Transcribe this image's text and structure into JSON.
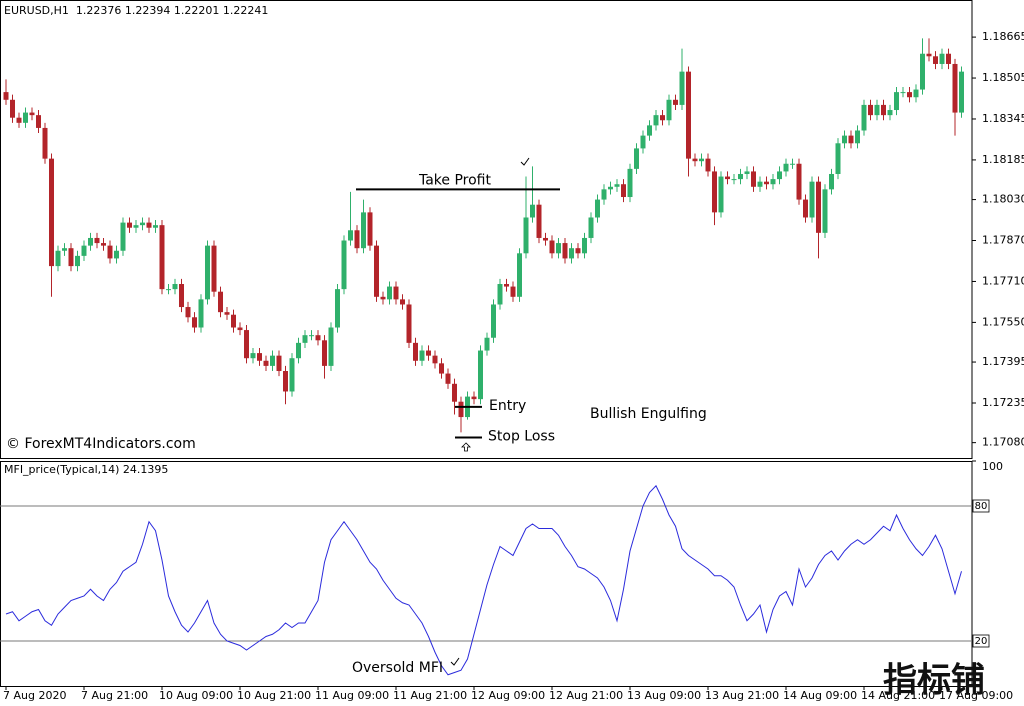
{
  "watermark": "指标铺",
  "chart_data": [
    {
      "type": "candlestick",
      "title": "EURUSD,H1  1.22376 1.22394 1.22201 1.22241",
      "categories": [
        "7 Aug 2020",
        null,
        null,
        null,
        null,
        null,
        null,
        null,
        null,
        null,
        null,
        null,
        "7 Aug 21:00",
        null,
        null,
        null,
        null,
        null,
        null,
        null,
        null,
        null,
        null,
        null,
        "10 Aug 09:00",
        null,
        null,
        null,
        null,
        null,
        null,
        null,
        null,
        null,
        null,
        null,
        "10 Aug 21:00",
        null,
        null,
        null,
        null,
        null,
        null,
        null,
        null,
        null,
        null,
        null,
        "11 Aug 09:00",
        null,
        null,
        null,
        null,
        null,
        null,
        null,
        null,
        null,
        null,
        null,
        "11 Aug 21:00",
        null,
        null,
        null,
        null,
        null,
        null,
        null,
        null,
        null,
        null,
        null,
        "12 Aug 09:00",
        null,
        null,
        null,
        null,
        null,
        null,
        null,
        null,
        null,
        null,
        null,
        "12 Aug 21:00",
        null,
        null,
        null,
        null,
        null,
        null,
        null,
        null,
        null,
        null,
        null,
        "13 Aug 09:00",
        null,
        null,
        null,
        null,
        null,
        null,
        null,
        null,
        null,
        null,
        null,
        "13 Aug 21:00",
        null,
        null,
        null,
        null,
        null,
        null,
        null,
        null,
        null,
        null,
        null,
        "14 Aug 09:00",
        null,
        null,
        null,
        null,
        null,
        null,
        null,
        null,
        null,
        null,
        null,
        "14 Aug 21:00",
        null,
        null,
        null,
        null,
        null,
        null,
        null,
        null,
        null,
        null,
        null,
        "17 Aug 09:00",
        null,
        null,
        null
      ],
      "open": [
        1.1845,
        1.1842,
        1.1835,
        1.1833,
        1.1837,
        1.1836,
        1.1831,
        1.1819,
        1.1777,
        1.1783,
        1.1784,
        1.1777,
        1.1781,
        1.1785,
        1.1788,
        1.1786,
        1.1785,
        1.178,
        1.1783,
        1.1794,
        1.1792,
        1.1793,
        1.1794,
        1.1792,
        1.1793,
        1.1768,
        1.1768,
        1.177,
        1.1761,
        1.1757,
        1.1753,
        1.1764,
        1.1785,
        1.1767,
        1.1759,
        1.1758,
        1.1753,
        1.1752,
        1.1741,
        1.1743,
        1.174,
        1.1738,
        1.1742,
        1.1736,
        1.1728,
        1.1741,
        1.1747,
        1.175,
        1.175,
        1.1748,
        1.1738,
        1.1753,
        1.1768,
        1.1787,
        1.1791,
        1.1784,
        1.1798,
        1.1785,
        1.1765,
        1.1764,
        1.1769,
        1.1764,
        1.1762,
        1.1747,
        1.174,
        1.1744,
        1.1742,
        1.1739,
        1.1735,
        1.1731,
        1.1724,
        1.1718,
        1.1726,
        1.1725,
        1.1744,
        1.1749,
        1.1762,
        1.177,
        1.1769,
        1.1765,
        1.1782,
        1.1796,
        1.1801,
        1.1788,
        1.1787,
        1.1782,
        1.1786,
        1.178,
        1.1784,
        1.1782,
        1.1788,
        1.1796,
        1.1803,
        1.1807,
        1.1808,
        1.1809,
        1.1804,
        1.1815,
        1.1823,
        1.1828,
        1.1832,
        1.1836,
        1.1834,
        1.1842,
        1.184,
        1.1853,
        1.1819,
        1.1818,
        1.1819,
        1.1814,
        1.1798,
        1.1812,
        1.1811,
        1.1811,
        1.1813,
        1.1814,
        1.1808,
        1.181,
        1.1809,
        1.1811,
        1.1814,
        1.1817,
        1.1817,
        1.1803,
        1.1796,
        1.181,
        1.179,
        1.1807,
        1.1813,
        1.1825,
        1.1828,
        1.1825,
        1.183,
        1.184,
        1.1836,
        1.184,
        1.1836,
        1.1838,
        1.1845,
        1.1845,
        1.1843,
        1.1846,
        1.186,
        1.1859,
        1.1856,
        1.186,
        1.1856,
        1.1837
      ],
      "high": [
        1.185,
        1.1844,
        1.1837,
        1.1839,
        1.1839,
        1.1838,
        1.1833,
        1.1821,
        1.1785,
        1.1786,
        1.1786,
        1.1783,
        1.1787,
        1.179,
        1.179,
        1.1788,
        1.1787,
        1.1785,
        1.1796,
        1.1796,
        1.1795,
        1.1796,
        1.1796,
        1.1795,
        1.1795,
        1.177,
        1.1772,
        1.1772,
        1.1763,
        1.1759,
        1.1766,
        1.1787,
        1.1787,
        1.1769,
        1.1761,
        1.176,
        1.1755,
        1.1754,
        1.1745,
        1.1745,
        1.1742,
        1.1744,
        1.1744,
        1.1738,
        1.1743,
        1.1749,
        1.1752,
        1.1752,
        1.1752,
        1.175,
        1.1755,
        1.177,
        1.1789,
        1.1806,
        1.1793,
        1.1803,
        1.18,
        1.1787,
        1.1767,
        1.1771,
        1.1771,
        1.1766,
        1.1764,
        1.1749,
        1.1746,
        1.1746,
        1.1744,
        1.1741,
        1.1737,
        1.1733,
        1.1726,
        1.1728,
        1.1728,
        1.1746,
        1.1751,
        1.1764,
        1.1772,
        1.1772,
        1.1771,
        1.1784,
        1.1812,
        1.1816,
        1.1803,
        1.179,
        1.1789,
        1.1788,
        1.1788,
        1.1786,
        1.1786,
        1.179,
        1.1798,
        1.1805,
        1.1809,
        1.181,
        1.1811,
        1.1811,
        1.1817,
        1.1825,
        1.183,
        1.1834,
        1.1838,
        1.1838,
        1.1844,
        1.1844,
        1.1862,
        1.1855,
        1.1821,
        1.1821,
        1.1821,
        1.1816,
        1.1814,
        1.1814,
        1.1813,
        1.1815,
        1.1816,
        1.1816,
        1.1812,
        1.1812,
        1.1813,
        1.1816,
        1.1819,
        1.1819,
        1.1819,
        1.1805,
        1.1812,
        1.1812,
        1.1809,
        1.1815,
        1.1827,
        1.183,
        1.183,
        1.1832,
        1.1842,
        1.1842,
        1.1842,
        1.1842,
        1.184,
        1.1847,
        1.1847,
        1.1847,
        1.1848,
        1.1866,
        1.1866,
        1.1861,
        1.1862,
        1.1862,
        1.1858,
        1.1855
      ],
      "low": [
        1.184,
        1.1833,
        1.1831,
        1.1831,
        1.1834,
        1.1829,
        1.1817,
        1.1765,
        1.1775,
        1.1781,
        1.1775,
        1.1775,
        1.1779,
        1.1783,
        1.1784,
        1.1783,
        1.1778,
        1.1778,
        1.1781,
        1.179,
        1.179,
        1.1791,
        1.179,
        1.179,
        1.1766,
        1.1766,
        1.1766,
        1.1759,
        1.1755,
        1.1751,
        1.1751,
        1.1762,
        1.1765,
        1.1757,
        1.1756,
        1.1751,
        1.175,
        1.1739,
        1.1739,
        1.1738,
        1.1736,
        1.1736,
        1.1734,
        1.1723,
        1.1726,
        1.1739,
        1.1745,
        1.1748,
        1.1746,
        1.1733,
        1.1736,
        1.1751,
        1.1766,
        1.1785,
        1.1782,
        1.1782,
        1.1783,
        1.1763,
        1.1762,
        1.1762,
        1.1762,
        1.176,
        1.1745,
        1.1738,
        1.1738,
        1.174,
        1.1737,
        1.1733,
        1.1729,
        1.1719,
        1.1712,
        1.1717,
        1.1723,
        1.1723,
        1.1742,
        1.1747,
        1.176,
        1.1767,
        1.1763,
        1.1763,
        1.178,
        1.1794,
        1.1786,
        1.1785,
        1.178,
        1.178,
        1.1778,
        1.1778,
        1.178,
        1.178,
        1.1786,
        1.1794,
        1.1801,
        1.1805,
        1.1806,
        1.1802,
        1.1802,
        1.1813,
        1.1821,
        1.1826,
        1.183,
        1.1832,
        1.1832,
        1.1838,
        1.1838,
        1.1812,
        1.1816,
        1.1816,
        1.1812,
        1.1793,
        1.1796,
        1.1809,
        1.1809,
        1.1809,
        1.1811,
        1.1806,
        1.1806,
        1.1807,
        1.1807,
        1.1809,
        1.1812,
        1.1815,
        1.1801,
        1.1794,
        1.1794,
        1.178,
        1.1788,
        1.1805,
        1.1811,
        1.1823,
        1.1823,
        1.1823,
        1.1828,
        1.1834,
        1.1834,
        1.1834,
        1.1834,
        1.1836,
        1.1843,
        1.1841,
        1.1841,
        1.1844,
        1.1857,
        1.1854,
        1.1854,
        1.1854,
        1.1828,
        1.1835
      ],
      "close": [
        1.1842,
        1.1835,
        1.1833,
        1.1837,
        1.1836,
        1.1831,
        1.1819,
        1.1777,
        1.1783,
        1.1784,
        1.1777,
        1.1781,
        1.1785,
        1.1788,
        1.1786,
        1.1785,
        1.178,
        1.1783,
        1.1794,
        1.1792,
        1.1793,
        1.1794,
        1.1792,
        1.1793,
        1.1768,
        1.1768,
        1.177,
        1.1761,
        1.1757,
        1.1753,
        1.1764,
        1.1785,
        1.1767,
        1.1759,
        1.1758,
        1.1753,
        1.1752,
        1.1741,
        1.1743,
        1.174,
        1.1738,
        1.1742,
        1.1736,
        1.1728,
        1.1741,
        1.1747,
        1.175,
        1.175,
        1.1748,
        1.1738,
        1.1753,
        1.1768,
        1.1787,
        1.1791,
        1.1784,
        1.1798,
        1.1785,
        1.1765,
        1.1764,
        1.1769,
        1.1764,
        1.1762,
        1.1747,
        1.174,
        1.1744,
        1.1742,
        1.1739,
        1.1735,
        1.1731,
        1.1724,
        1.1718,
        1.1726,
        1.1725,
        1.1744,
        1.1749,
        1.1762,
        1.177,
        1.1769,
        1.1765,
        1.1782,
        1.1796,
        1.1801,
        1.1788,
        1.1787,
        1.1782,
        1.1786,
        1.178,
        1.1784,
        1.1782,
        1.1788,
        1.1796,
        1.1803,
        1.1807,
        1.1808,
        1.1809,
        1.1804,
        1.1815,
        1.1823,
        1.1828,
        1.1832,
        1.1836,
        1.1834,
        1.1842,
        1.184,
        1.1853,
        1.1819,
        1.1818,
        1.1819,
        1.1814,
        1.1798,
        1.1812,
        1.1811,
        1.1811,
        1.1813,
        1.1814,
        1.1808,
        1.181,
        1.1809,
        1.1811,
        1.1814,
        1.1817,
        1.1817,
        1.1803,
        1.1796,
        1.181,
        1.179,
        1.1807,
        1.1813,
        1.1825,
        1.1828,
        1.1825,
        1.183,
        1.184,
        1.1836,
        1.184,
        1.1836,
        1.1838,
        1.1845,
        1.1845,
        1.1843,
        1.1846,
        1.186,
        1.1859,
        1.1856,
        1.186,
        1.1856,
        1.1837,
        1.1853
      ],
      "up_color": "#2fb06b",
      "down_color": "#b3242a",
      "ylim": [
        1.1702,
        1.1881
      ],
      "yticks": [
        1.18665,
        1.18505,
        1.18345,
        1.18185,
        {
          "value": 1.1803,
          "label": "1.18030"
        },
        {
          "value": 1.1787,
          "label": "1.17870"
        },
        {
          "value": 1.1771,
          "label": "1.17710"
        },
        {
          "value": 1.1755,
          "label": "1.17550"
        },
        1.17395,
        1.17235,
        {
          "value": 1.1708,
          "label": "1.17080"
        }
      ],
      "annotations": [
        {
          "text": "Take Profit",
          "price": 1.1807
        },
        {
          "text": "Entry",
          "price": 1.1722
        },
        {
          "text": "Stop Loss",
          "price": 1.171
        },
        {
          "text": "Bullish Engulfing"
        },
        {
          "text": "© ForexMT4Indicators.com"
        }
      ]
    },
    {
      "type": "line",
      "title": "MFI_price(Typical,14) 24.1395",
      "values": [
        32,
        33,
        29,
        31,
        33,
        34,
        29,
        27,
        32,
        35,
        38,
        39,
        40,
        43,
        40,
        38,
        43,
        46,
        51,
        53,
        55,
        63,
        73,
        69,
        56,
        40,
        33,
        27,
        24,
        28,
        33,
        38,
        28,
        23,
        20,
        19,
        18,
        16,
        18,
        20,
        22,
        23,
        25,
        28,
        26,
        28,
        28,
        33,
        38,
        55,
        65,
        69,
        73,
        69,
        65,
        60,
        55,
        52,
        47,
        43,
        39,
        37,
        36,
        32,
        28,
        22,
        15,
        9,
        5,
        6,
        7,
        12,
        23,
        34,
        45,
        54,
        62,
        60,
        58,
        64,
        70,
        72,
        70,
        70,
        70,
        67,
        62,
        58,
        53,
        52,
        50,
        48,
        44,
        38,
        29,
        43,
        60,
        70,
        80,
        86,
        89,
        83,
        76,
        71,
        61,
        58,
        56,
        54,
        52,
        49,
        49,
        47,
        44,
        36,
        29,
        32,
        36,
        24,
        34,
        40,
        42,
        36,
        52,
        44,
        48,
        54,
        58,
        60,
        56,
        60,
        63,
        65,
        63,
        65,
        68,
        71,
        69,
        76,
        70,
        65,
        61,
        58,
        62,
        67,
        61,
        51,
        41,
        51
      ],
      "color": "#2b2bdc",
      "ylim": [
        0,
        100
      ],
      "yticks": [
        100
      ],
      "levels": [
        80,
        20
      ],
      "annotations": [
        {
          "text": "Oversold MFI"
        }
      ]
    }
  ]
}
